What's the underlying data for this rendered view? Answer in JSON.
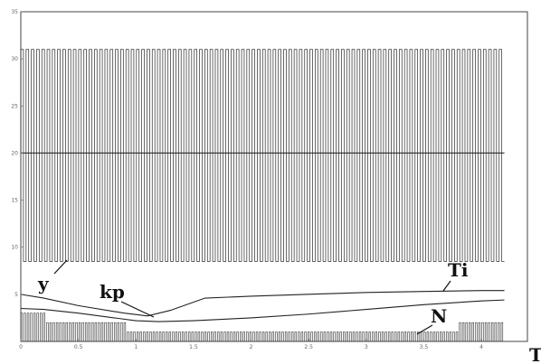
{
  "chart_data": {
    "type": "line",
    "xlabel": "T",
    "ylabel": "",
    "xlim": [
      0,
      4.4
    ],
    "ylim": [
      0,
      35
    ],
    "x_ticks": [
      0,
      0.5,
      1,
      1.5,
      2,
      2.5,
      3,
      3.5,
      4
    ],
    "y_ticks": [
      5,
      10,
      15,
      20,
      25,
      30,
      35
    ],
    "x_tick_labels": [
      "0",
      "0.5",
      "1",
      "1.5",
      "2",
      "2.5",
      "3",
      "3.5",
      "4"
    ],
    "y_tick_labels": [
      "5",
      "10",
      "15",
      "20",
      "25",
      "30",
      "35"
    ],
    "series": [
      {
        "name": "y",
        "description_of_shape": "square-wave oscillation",
        "upper_level": 31,
        "lower_level": 8.5,
        "center_level": 20,
        "cycles": 92,
        "x": [
          0,
          4.2
        ]
      },
      {
        "name": "Ti",
        "x": [
          0,
          0.2,
          0.5,
          0.9,
          1.1,
          1.3,
          1.6,
          2.0,
          2.5,
          3.0,
          3.5,
          4.0,
          4.2
        ],
        "values": [
          5.0,
          4.6,
          3.8,
          3.0,
          2.7,
          3.3,
          4.6,
          4.8,
          5.0,
          5.2,
          5.3,
          5.4,
          5.4
        ]
      },
      {
        "name": "kp",
        "x": [
          0,
          0.2,
          0.5,
          1.0,
          1.2,
          1.5,
          2.0,
          2.5,
          3.0,
          3.5,
          4.0,
          4.2
        ],
        "values": [
          3.5,
          3.4,
          3.0,
          2.2,
          2.1,
          2.2,
          2.5,
          2.9,
          3.4,
          3.9,
          4.3,
          4.4
        ]
      },
      {
        "name": "N",
        "description_of_shape": "integer step trace",
        "x": [
          0,
          0.2,
          0.9,
          1.5,
          3.6,
          3.8,
          4.2
        ],
        "values": [
          3,
          2,
          1,
          1,
          1,
          2,
          2
        ]
      }
    ],
    "annotations": [
      "y",
      "kp",
      "Ti",
      "N"
    ],
    "grid": false,
    "legend": "none"
  }
}
